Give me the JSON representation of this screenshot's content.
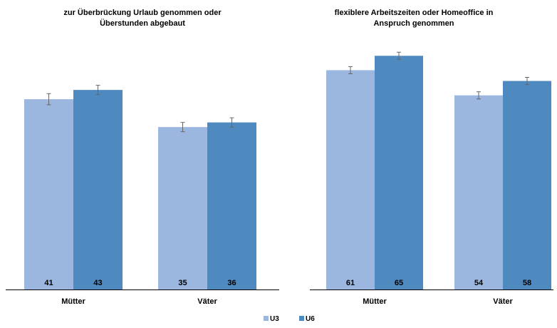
{
  "colors": {
    "u3": "#9bb7e0",
    "u6": "#4e89c0",
    "axis": "#000000",
    "errorbar": "#666666"
  },
  "legend": [
    {
      "label": "U3",
      "color": "#9bb7e0"
    },
    {
      "label": "U6",
      "color": "#4e89c0"
    }
  ],
  "chart_data": [
    {
      "type": "bar",
      "title_lines": [
        "zur Überbrückung Urlaub genommen oder",
        "Überstunden abgebaut"
      ],
      "categories": [
        "Mütter",
        "Väter"
      ],
      "series": [
        {
          "name": "U3",
          "values": [
            41,
            35
          ],
          "error": [
            1.2,
            1.0
          ]
        },
        {
          "name": "U6",
          "values": [
            43,
            36
          ],
          "error": [
            1.0,
            1.0
          ]
        }
      ],
      "ylim": [
        0,
        55
      ],
      "grid": false,
      "legend_position": "bottom"
    },
    {
      "type": "bar",
      "title_lines": [
        "flexiblere Arbeitszeiten oder Homeoffice in",
        "Anspruch genommen"
      ],
      "categories": [
        "Mütter",
        "Väter"
      ],
      "series": [
        {
          "name": "U3",
          "values": [
            61,
            54
          ],
          "error": [
            1.0,
            1.0
          ]
        },
        {
          "name": "U6",
          "values": [
            65,
            58
          ],
          "error": [
            1.0,
            1.0
          ]
        }
      ],
      "ylim": [
        0,
        71
      ],
      "grid": false,
      "legend_position": "bottom"
    }
  ]
}
